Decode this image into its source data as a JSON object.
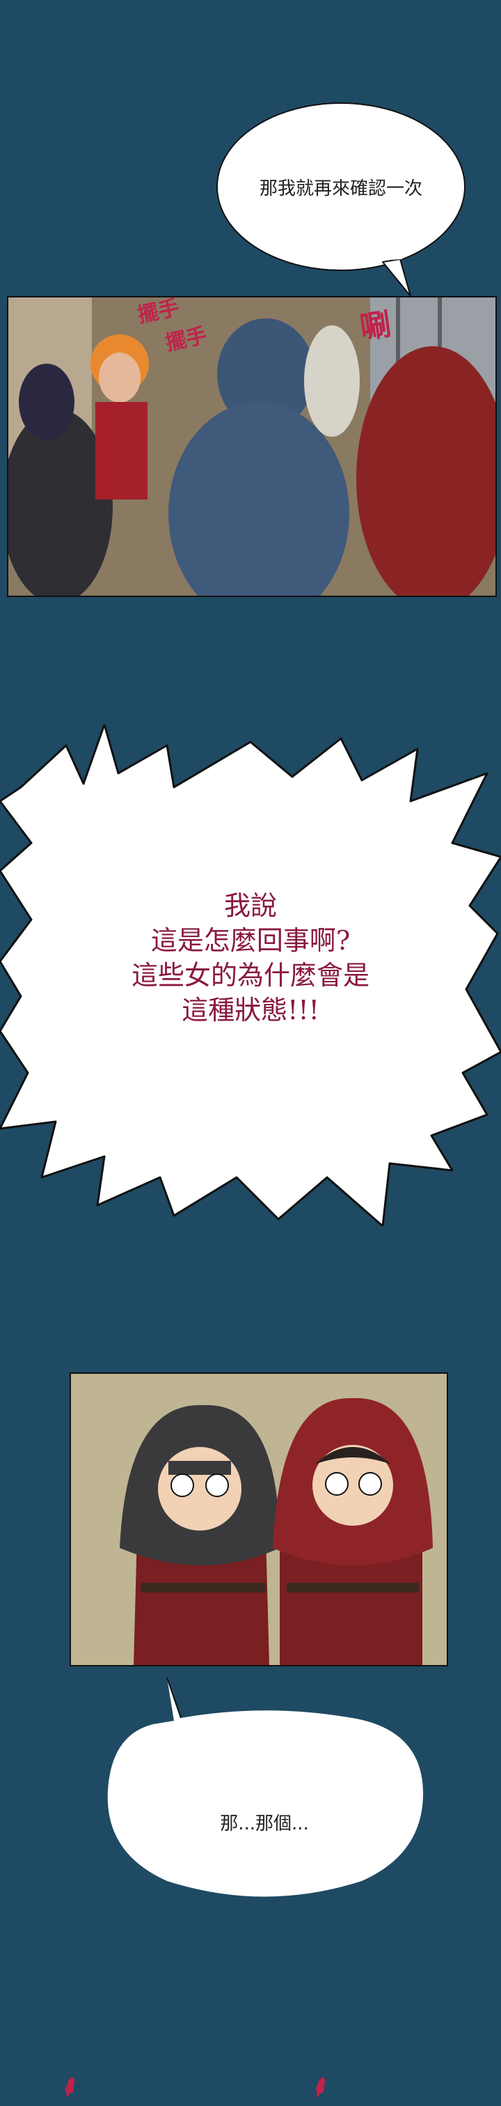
{
  "bubble_1": {
    "text": "那我就再來確認一次"
  },
  "panel_1": {
    "sfx_wave_1": "擺手",
    "sfx_wave_2": "擺手",
    "sfx_swish": "唰"
  },
  "shout": {
    "lines": [
      "我說",
      "這是怎麼回事啊?",
      "這些女的為什麼會是",
      "這種狀態!!!"
    ]
  },
  "bubble_2": {
    "text": "那...那個..."
  },
  "colors": {
    "background": "#1f4a63",
    "shout_text": "#8a1a3d",
    "sfx": "#c0234a"
  }
}
